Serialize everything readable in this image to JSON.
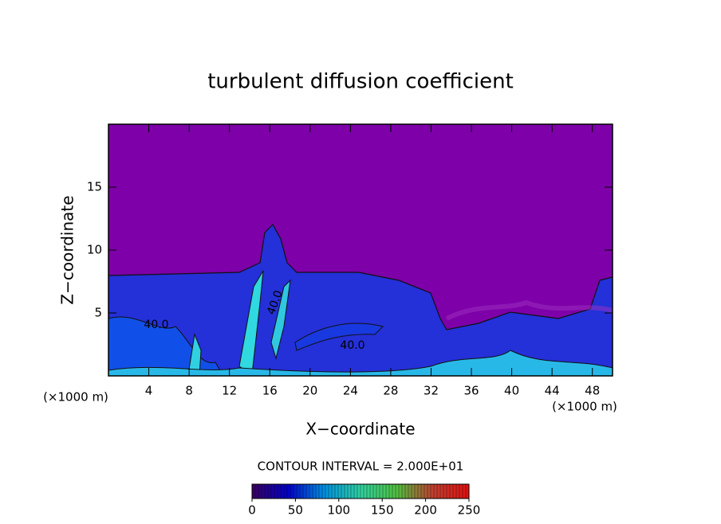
{
  "chart_data": {
    "type": "contour",
    "title": "turbulent diffusion coefficient",
    "x_label": "X−coordinate",
    "y_label": "Z−coordinate",
    "x_unit": "(×1000 m)",
    "xlim": [
      0,
      50
    ],
    "xticks": [
      4,
      8,
      12,
      16,
      20,
      24,
      28,
      32,
      36,
      40,
      44,
      48
    ],
    "ylim": [
      0,
      20
    ],
    "yticks": [
      5,
      10,
      15
    ],
    "contour_interval_text": "CONTOUR INTERVAL = 2.000E+01",
    "contour_labels": [
      {
        "value": 40,
        "label": "40.0"
      },
      {
        "value": 40,
        "label": "40.0"
      },
      {
        "value": 40,
        "label": "40.0"
      }
    ],
    "colorbar": {
      "lim": [
        0,
        250
      ],
      "ticks": [
        0,
        50,
        100,
        150,
        200,
        250
      ],
      "colors": [
        "#3a0060",
        "#0000c8",
        "#0090e0",
        "#30d0a0",
        "#50c040",
        "#c04030",
        "#e01010"
      ]
    }
  }
}
